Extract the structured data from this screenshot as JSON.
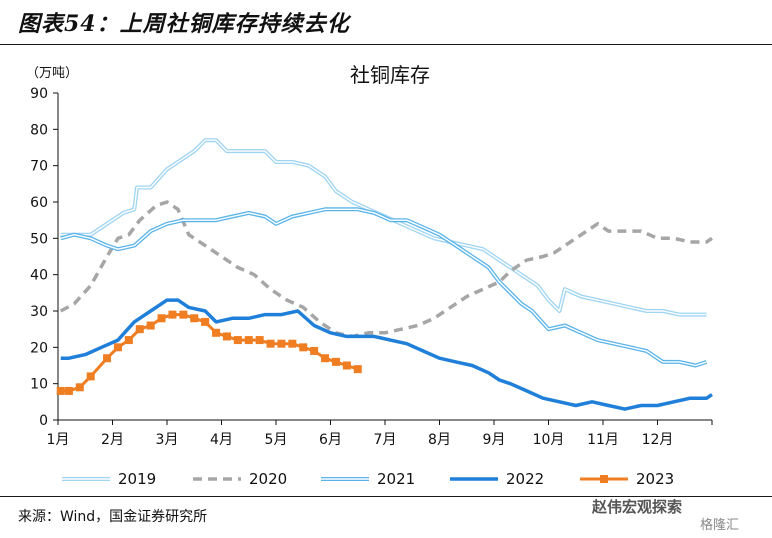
{
  "header": {
    "figure_title": "图表54：上周社铜库存持续去化"
  },
  "footer": {
    "source": "来源：Wind，国金证券研究所",
    "watermark": "赵伟宏观探索",
    "watermark2": "格隆汇"
  },
  "colors": {
    "2019": "#9fd4f2",
    "2020": "#a6a6a6",
    "2021": "#5ab4e8",
    "2022": "#1f7fd9",
    "2023": "#ef7d22"
  },
  "chart_data": {
    "type": "line",
    "title": "社铜库存",
    "ylabel": "（万吨）",
    "ylim": [
      0,
      90
    ],
    "yticks": [
      0,
      10,
      20,
      30,
      40,
      50,
      60,
      70,
      80,
      90
    ],
    "xlim": [
      1,
      13
    ],
    "xticks": [
      {
        "v": 1,
        "label": "1月"
      },
      {
        "v": 2,
        "label": "2月"
      },
      {
        "v": 3,
        "label": "3月"
      },
      {
        "v": 4,
        "label": "4月"
      },
      {
        "v": 5,
        "label": "5月"
      },
      {
        "v": 6,
        "label": "6月"
      },
      {
        "v": 7,
        "label": "7月"
      },
      {
        "v": 8,
        "label": "8月"
      },
      {
        "v": 9,
        "label": "9月"
      },
      {
        "v": 10,
        "label": "10月"
      },
      {
        "v": 11,
        "label": "11月"
      },
      {
        "v": 12,
        "label": "12月"
      }
    ],
    "grid": false,
    "legend": "bottom",
    "series": [
      {
        "name": "2019",
        "style": "double",
        "points": [
          [
            1.05,
            51
          ],
          [
            1.3,
            51
          ],
          [
            1.6,
            51
          ],
          [
            1.9,
            54
          ],
          [
            2.2,
            57
          ],
          [
            2.4,
            58
          ],
          [
            2.45,
            64
          ],
          [
            2.7,
            64
          ],
          [
            3.0,
            69
          ],
          [
            3.3,
            72
          ],
          [
            3.5,
            74
          ],
          [
            3.7,
            77
          ],
          [
            3.9,
            77
          ],
          [
            4.1,
            74
          ],
          [
            4.4,
            74
          ],
          [
            4.6,
            74
          ],
          [
            4.8,
            74
          ],
          [
            5.0,
            71
          ],
          [
            5.3,
            71
          ],
          [
            5.6,
            70
          ],
          [
            5.9,
            67
          ],
          [
            6.1,
            63
          ],
          [
            6.4,
            60
          ],
          [
            6.7,
            58
          ],
          [
            7.0,
            56
          ],
          [
            7.3,
            54
          ],
          [
            7.6,
            52
          ],
          [
            7.9,
            50
          ],
          [
            8.2,
            49
          ],
          [
            8.5,
            48
          ],
          [
            8.8,
            47
          ],
          [
            9.0,
            45
          ],
          [
            9.2,
            43
          ],
          [
            9.4,
            41
          ],
          [
            9.6,
            39
          ],
          [
            9.8,
            37
          ],
          [
            10.0,
            33
          ],
          [
            10.2,
            30
          ],
          [
            10.3,
            36
          ],
          [
            10.6,
            34
          ],
          [
            10.9,
            33
          ],
          [
            11.2,
            32
          ],
          [
            11.5,
            31
          ],
          [
            11.8,
            30
          ],
          [
            12.1,
            30
          ],
          [
            12.4,
            29
          ],
          [
            12.7,
            29
          ],
          [
            12.9,
            29
          ]
        ]
      },
      {
        "name": "2020",
        "style": "dash",
        "points": [
          [
            1.05,
            30
          ],
          [
            1.3,
            32
          ],
          [
            1.6,
            37
          ],
          [
            1.9,
            45
          ],
          [
            2.1,
            50
          ],
          [
            2.3,
            51
          ],
          [
            2.5,
            55
          ],
          [
            2.8,
            59
          ],
          [
            3.0,
            60
          ],
          [
            3.2,
            58
          ],
          [
            3.4,
            51
          ],
          [
            3.7,
            48
          ],
          [
            4.0,
            45
          ],
          [
            4.3,
            42
          ],
          [
            4.6,
            40
          ],
          [
            4.9,
            36
          ],
          [
            5.2,
            33
          ],
          [
            5.5,
            31
          ],
          [
            5.8,
            27
          ],
          [
            6.1,
            24
          ],
          [
            6.4,
            23
          ],
          [
            6.7,
            24
          ],
          [
            7.0,
            24
          ],
          [
            7.3,
            25
          ],
          [
            7.6,
            26
          ],
          [
            7.9,
            28
          ],
          [
            8.2,
            31
          ],
          [
            8.5,
            34
          ],
          [
            8.8,
            36
          ],
          [
            9.1,
            38
          ],
          [
            9.3,
            41
          ],
          [
            9.6,
            44
          ],
          [
            9.9,
            45
          ],
          [
            10.1,
            46
          ],
          [
            10.4,
            49
          ],
          [
            10.7,
            52
          ],
          [
            10.9,
            54
          ],
          [
            11.1,
            52
          ],
          [
            11.4,
            52
          ],
          [
            11.7,
            52
          ],
          [
            12.0,
            50
          ],
          [
            12.3,
            50
          ],
          [
            12.6,
            49
          ],
          [
            12.9,
            49
          ],
          [
            13.0,
            50
          ]
        ]
      },
      {
        "name": "2021",
        "style": "double",
        "points": [
          [
            1.05,
            50
          ],
          [
            1.3,
            51
          ],
          [
            1.6,
            50
          ],
          [
            1.9,
            48
          ],
          [
            2.1,
            47
          ],
          [
            2.4,
            48
          ],
          [
            2.7,
            52
          ],
          [
            3.0,
            54
          ],
          [
            3.3,
            55
          ],
          [
            3.6,
            55
          ],
          [
            3.9,
            55
          ],
          [
            4.2,
            56
          ],
          [
            4.5,
            57
          ],
          [
            4.8,
            56
          ],
          [
            5.0,
            54
          ],
          [
            5.3,
            56
          ],
          [
            5.6,
            57
          ],
          [
            5.9,
            58
          ],
          [
            6.2,
            58
          ],
          [
            6.5,
            58
          ],
          [
            6.8,
            57
          ],
          [
            7.1,
            55
          ],
          [
            7.4,
            55
          ],
          [
            7.7,
            53
          ],
          [
            8.0,
            51
          ],
          [
            8.3,
            48
          ],
          [
            8.6,
            45
          ],
          [
            8.9,
            42
          ],
          [
            9.1,
            38
          ],
          [
            9.3,
            35
          ],
          [
            9.5,
            32
          ],
          [
            9.7,
            30
          ],
          [
            10.0,
            25
          ],
          [
            10.3,
            26
          ],
          [
            10.6,
            24
          ],
          [
            10.9,
            22
          ],
          [
            11.2,
            21
          ],
          [
            11.5,
            20
          ],
          [
            11.8,
            19
          ],
          [
            12.1,
            16
          ],
          [
            12.4,
            16
          ],
          [
            12.7,
            15
          ],
          [
            12.9,
            16
          ]
        ]
      },
      {
        "name": "2022",
        "style": "solid",
        "points": [
          [
            1.05,
            17
          ],
          [
            1.2,
            17
          ],
          [
            1.5,
            18
          ],
          [
            1.8,
            20
          ],
          [
            2.1,
            22
          ],
          [
            2.4,
            27
          ],
          [
            2.7,
            30
          ],
          [
            3.0,
            33
          ],
          [
            3.2,
            33
          ],
          [
            3.4,
            31
          ],
          [
            3.7,
            30
          ],
          [
            3.9,
            27
          ],
          [
            4.2,
            28
          ],
          [
            4.5,
            28
          ],
          [
            4.8,
            29
          ],
          [
            5.1,
            29
          ],
          [
            5.4,
            30
          ],
          [
            5.7,
            26
          ],
          [
            6.0,
            24
          ],
          [
            6.3,
            23
          ],
          [
            6.6,
            23
          ],
          [
            6.8,
            23
          ],
          [
            7.1,
            22
          ],
          [
            7.4,
            21
          ],
          [
            7.7,
            19
          ],
          [
            8.0,
            17
          ],
          [
            8.3,
            16
          ],
          [
            8.6,
            15
          ],
          [
            8.9,
            13
          ],
          [
            9.1,
            11
          ],
          [
            9.3,
            10
          ],
          [
            9.6,
            8
          ],
          [
            9.9,
            6
          ],
          [
            10.2,
            5
          ],
          [
            10.5,
            4
          ],
          [
            10.8,
            5
          ],
          [
            11.1,
            4
          ],
          [
            11.4,
            3
          ],
          [
            11.7,
            4
          ],
          [
            12.0,
            4
          ],
          [
            12.3,
            5
          ],
          [
            12.6,
            6
          ],
          [
            12.9,
            6
          ],
          [
            13.0,
            7
          ]
        ]
      },
      {
        "name": "2023",
        "style": "marker",
        "points": [
          [
            1.05,
            8
          ],
          [
            1.2,
            8
          ],
          [
            1.4,
            9
          ],
          [
            1.6,
            12
          ],
          [
            1.9,
            17
          ],
          [
            2.1,
            20
          ],
          [
            2.3,
            22
          ],
          [
            2.5,
            25
          ],
          [
            2.7,
            26
          ],
          [
            2.9,
            28
          ],
          [
            3.1,
            29
          ],
          [
            3.3,
            29
          ],
          [
            3.5,
            28
          ],
          [
            3.7,
            27
          ],
          [
            3.9,
            24
          ],
          [
            4.1,
            23
          ],
          [
            4.3,
            22
          ],
          [
            4.5,
            22
          ],
          [
            4.7,
            22
          ],
          [
            4.9,
            21
          ],
          [
            5.1,
            21
          ],
          [
            5.3,
            21
          ],
          [
            5.5,
            20
          ],
          [
            5.7,
            19
          ],
          [
            5.9,
            17
          ],
          [
            6.1,
            16
          ],
          [
            6.3,
            15
          ],
          [
            6.5,
            14
          ]
        ]
      }
    ]
  }
}
